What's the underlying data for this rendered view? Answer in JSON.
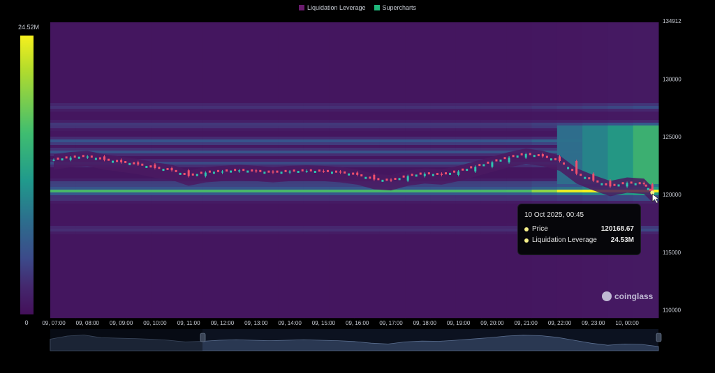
{
  "legend": {
    "items": [
      {
        "label": "Liquidation Leverage",
        "color": "#6a1b6e"
      },
      {
        "label": "Supercharts",
        "color": "#1fb77a"
      }
    ]
  },
  "colorbar": {
    "max_label": "24.52M",
    "min_label": "0"
  },
  "tooltip": {
    "title": "10 Oct 2025, 00:45",
    "rows": [
      {
        "label": "Price",
        "value": "120168.67"
      },
      {
        "label": "Liquidation Leverage",
        "value": "24.53M"
      }
    ]
  },
  "brand": {
    "name": "coinglass"
  },
  "chart_data": {
    "type": "heatmap",
    "title": "",
    "xlabel": "",
    "ylabel": "",
    "ylim": [
      109500,
      134912
    ],
    "y_ticks": [
      "134912",
      "130000",
      "125000",
      "120000",
      "115000",
      "110000"
    ],
    "x_ticks": [
      "09, 07:00",
      "09, 08:00",
      "09, 09:00",
      "09, 10:00",
      "09, 11:00",
      "09, 12:00",
      "09, 13:00",
      "09, 14:00",
      "09, 15:00",
      "09, 16:00",
      "09, 17:00",
      "09, 18:00",
      "09, 19:00",
      "09, 20:00",
      "09, 21:00",
      "09, 22:00",
      "09, 23:00",
      "10, 00:00"
    ],
    "price_series": {
      "name": "Price",
      "hours": [
        0,
        0.5,
        1,
        1.5,
        2,
        2.5,
        3,
        3.5,
        4,
        4.5,
        5,
        5.5,
        6,
        6.5,
        7,
        7.5,
        8,
        8.5,
        9,
        9.5,
        10,
        10.5,
        11,
        11.5,
        12,
        12.5,
        13,
        13.5,
        14,
        14.5,
        15,
        15.5,
        16,
        16.5,
        17,
        17.5,
        17.75
      ],
      "values": [
        123000,
        123200,
        123300,
        123000,
        122800,
        122600,
        122300,
        122100,
        121600,
        121900,
        122000,
        122100,
        122000,
        121900,
        122000,
        122050,
        122000,
        121900,
        121700,
        121300,
        121200,
        121600,
        121800,
        121700,
        122000,
        122400,
        122800,
        123200,
        123500,
        123300,
        122900,
        121800,
        121200,
        120700,
        121000,
        120900,
        120168.67
      ]
    },
    "colorscale": {
      "min": 0,
      "max": 24520000
    },
    "liquidation_bands": [
      {
        "price": 124600,
        "level": 0.55
      },
      {
        "price": 123700,
        "level": 0.5
      },
      {
        "price": 122700,
        "level": 0.45
      },
      {
        "price": 120900,
        "level": 0.5
      },
      {
        "price": 120300,
        "level": 0.98
      },
      {
        "price": 119700,
        "level": 0.35
      },
      {
        "price": 126000,
        "level": 0.4
      },
      {
        "price": 127600,
        "level": 0.3
      },
      {
        "price": 117000,
        "level": 0.3
      }
    ],
    "navigator": {
      "values": [
        0.55,
        0.7,
        0.75,
        0.62,
        0.6,
        0.58,
        0.55,
        0.5,
        0.42,
        0.45,
        0.5,
        0.52,
        0.5,
        0.48,
        0.5,
        0.52,
        0.5,
        0.48,
        0.44,
        0.36,
        0.32,
        0.42,
        0.46,
        0.45,
        0.5,
        0.56,
        0.62,
        0.7,
        0.74,
        0.72,
        0.64,
        0.5,
        0.36,
        0.26,
        0.32,
        0.3,
        0.2
      ]
    }
  }
}
